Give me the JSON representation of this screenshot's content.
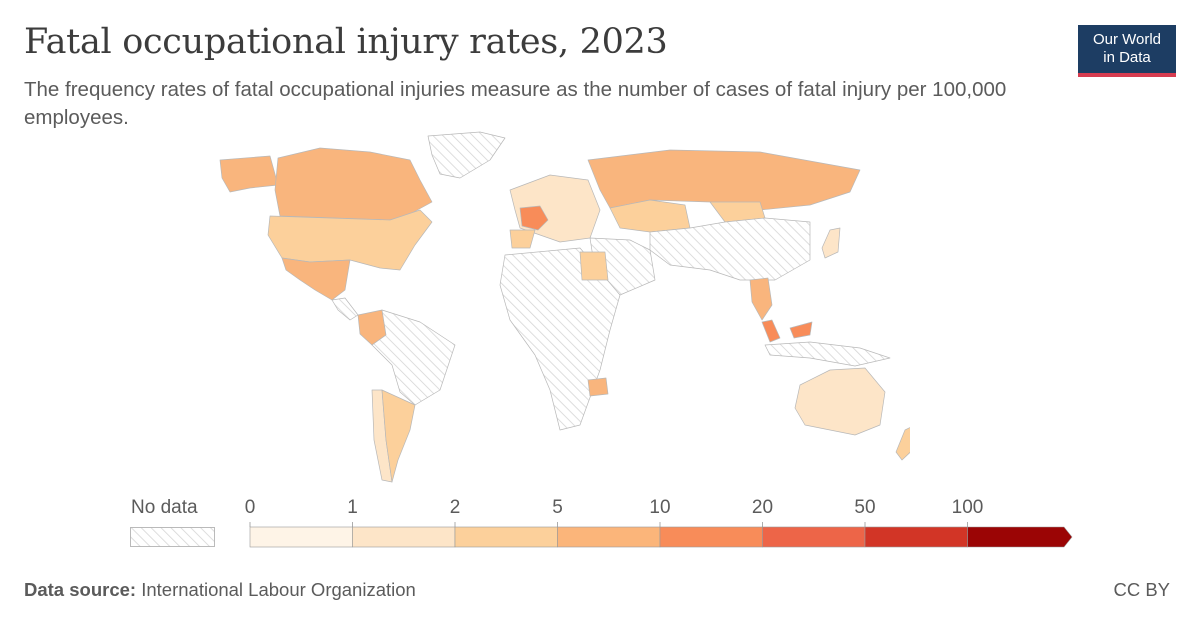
{
  "header": {
    "title": "Fatal occupational injury rates, 2023",
    "subtitle": "The frequency rates of fatal occupational injuries measure as the number of cases of fatal injury per 100,000 employees."
  },
  "logo": {
    "line1": "Our World",
    "line2": "in Data"
  },
  "legend": {
    "no_data_label": "No data",
    "ticks": [
      "0",
      "1",
      "2",
      "5",
      "10",
      "20",
      "50",
      "100"
    ],
    "colors": [
      "#fef4e7",
      "#fde5c8",
      "#fcd09b",
      "#fbb57a",
      "#f88c59",
      "#ed6548",
      "#d23526",
      "#9b0505"
    ]
  },
  "map_colors": {
    "no_data_hatch": "#d5d5d5",
    "canada": "#f9b57d",
    "usa": "#fcd09b",
    "mexico": "#f9b57d",
    "france": "#f88c59",
    "russia": "#f9b57d",
    "australia": "#fde5c8",
    "argentina": "#fcd09b",
    "chile": "#fde5c8",
    "colombia": "#f9b57d",
    "malaysia": "#f88c59",
    "thailand": "#f9b57d",
    "kazakhstan": "#fcd09b",
    "mongolia": "#fcd09b",
    "egypt": "#fcd09b",
    "zimbabwe": "#f9b57d"
  },
  "footer": {
    "source_label": "Data source:",
    "source_value": "International Labour Organization",
    "license": "CC BY"
  }
}
